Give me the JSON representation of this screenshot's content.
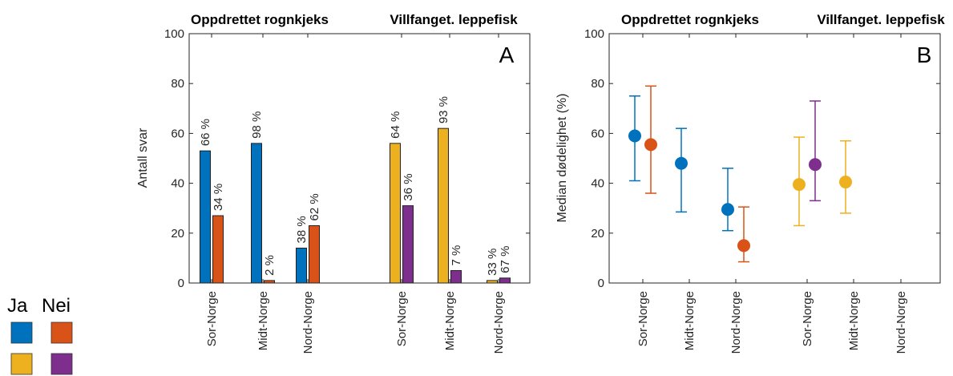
{
  "colors": {
    "ja_rognkjeks": "#0072BD",
    "nei_rognkjeks": "#D95319",
    "ja_leppefisk": "#EDB120",
    "nei_leppefisk": "#7E2F8E"
  },
  "legend": {
    "ja": "Ja",
    "nei": "Nei"
  },
  "chart_data": [
    {
      "type": "bar",
      "panel_label": "A",
      "group_titles": [
        "Oppdrettet rognkjeks",
        "Villfanget. leppefisk"
      ],
      "ylabel": "Antall svar",
      "ylim": [
        0,
        100
      ],
      "yticks": [
        0,
        20,
        40,
        60,
        80,
        100
      ],
      "categories": [
        "Sor-Norge",
        "Midt-Norge",
        "Nord-Norge",
        "Sor-Norge",
        "Midt-Norge",
        "Nord-Norge"
      ],
      "series": [
        {
          "name": "Ja",
          "values": [
            53,
            56,
            14,
            56,
            62,
            1
          ],
          "labels": [
            "66 %",
            "98 %",
            "38 %",
            "64 %",
            "93 %",
            "33 %"
          ]
        },
        {
          "name": "Nei",
          "values": [
            27,
            1,
            23,
            31,
            5,
            2
          ],
          "labels": [
            "34 %",
            "2 %",
            "62 %",
            "36 %",
            "7 %",
            "67 %"
          ]
        }
      ]
    },
    {
      "type": "scatter",
      "panel_label": "B",
      "group_titles": [
        "Oppdrettet rognkjeks",
        "Villfanget. leppefisk"
      ],
      "ylabel": "Median dødelighet (%)",
      "ylim": [
        0,
        100
      ],
      "yticks": [
        0,
        20,
        40,
        60,
        80,
        100
      ],
      "categories": [
        "Sor-Norge",
        "Midt-Norge",
        "Nord-Norge",
        "Sor-Norge",
        "Midt-Norge",
        "Nord-Norge"
      ],
      "series": [
        {
          "name": "Ja",
          "values": [
            59,
            48,
            29.5,
            39.5,
            40.5,
            null
          ],
          "lower": [
            41,
            28.5,
            21,
            23,
            28,
            null
          ],
          "upper": [
            75,
            62,
            46,
            58.5,
            57,
            null
          ]
        },
        {
          "name": "Nei",
          "values": [
            55.5,
            null,
            15,
            47.5,
            null,
            null
          ],
          "lower": [
            36,
            null,
            8.5,
            33,
            null,
            null
          ],
          "upper": [
            79,
            null,
            30.5,
            73,
            null,
            null
          ]
        }
      ]
    }
  ]
}
